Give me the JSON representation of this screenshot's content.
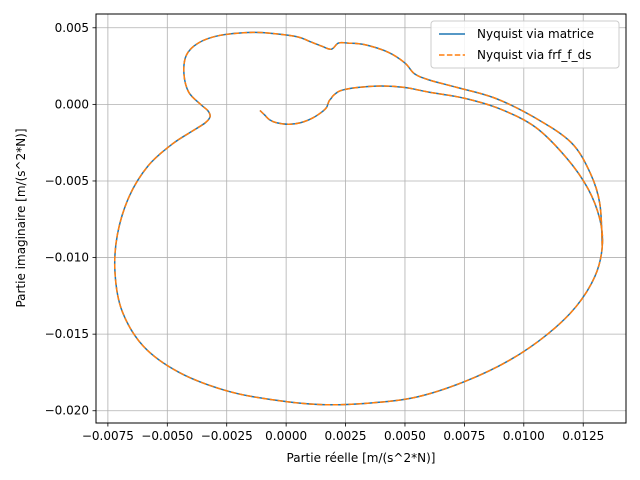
{
  "chart_data": {
    "type": "line",
    "title": "",
    "xlabel": "Partie réelle [m/(s^2*N)]",
    "ylabel": "Partie imaginaire [m/(s^2*N)]",
    "xlim": [
      -0.008,
      0.0143
    ],
    "ylim": [
      -0.0208,
      0.0059
    ],
    "xticks": [
      -0.0075,
      -0.005,
      -0.0025,
      0.0,
      0.0025,
      0.005,
      0.0075,
      0.01,
      0.0125
    ],
    "xtick_labels": [
      "−0.0075",
      "−0.0050",
      "−0.0025",
      "0.0000",
      "0.0025",
      "0.0050",
      "0.0075",
      "0.0100",
      "0.0125"
    ],
    "yticks": [
      0.005,
      0.0,
      -0.005,
      -0.01,
      -0.015,
      -0.02
    ],
    "ytick_labels": [
      "0.005",
      "0.000",
      "−0.005",
      "−0.010",
      "−0.015",
      "−0.020"
    ],
    "grid": true,
    "legend_position": "top-right",
    "series": [
      {
        "name": "Nyquist via matrice",
        "color": "#1f77b4",
        "style": "solid",
        "x": [
          -0.0011,
          -0.0009,
          -0.0007,
          -0.0004,
          0.0001,
          0.0006,
          0.0011,
          0.0015,
          0.0017,
          0.0018,
          0.0019,
          0.002,
          0.0023,
          0.003,
          0.004,
          0.005,
          0.006,
          0.0075,
          0.009,
          0.0105,
          0.0118,
          0.0127,
          0.0132,
          0.0133,
          0.013,
          0.0122,
          0.011,
          0.0094,
          0.0075,
          0.0055,
          0.0035,
          0.0015,
          -0.0005,
          -0.0025,
          -0.0045,
          -0.006,
          -0.0069,
          -0.0072,
          -0.0071,
          -0.0066,
          -0.0058,
          -0.0048,
          -0.0039,
          -0.0034,
          -0.0032,
          -0.0033,
          -0.0036,
          -0.0041,
          -0.0043,
          -0.0042,
          -0.0037,
          -0.0028,
          -0.0014,
          -0.0004,
          0.0005,
          0.001,
          0.0015,
          0.0019,
          0.0022,
          0.0026,
          0.0033,
          0.0043,
          0.005,
          0.0054,
          0.006,
          0.0072,
          0.0088,
          0.0105,
          0.012,
          0.0128,
          0.0132,
          0.0133
        ],
        "y": [
          -0.0004,
          -0.0007,
          -0.001,
          -0.0012,
          -0.0013,
          -0.0012,
          -0.0009,
          -0.0005,
          -0.0002,
          0.0002,
          0.0004,
          0.0006,
          0.0009,
          0.0011,
          0.0012,
          0.0011,
          0.0008,
          0.0004,
          -0.0003,
          -0.0015,
          -0.0035,
          -0.0055,
          -0.0075,
          -0.0093,
          -0.0112,
          -0.0132,
          -0.015,
          -0.0167,
          -0.0181,
          -0.0191,
          -0.0195,
          -0.0196,
          -0.0193,
          -0.0187,
          -0.0175,
          -0.0158,
          -0.0135,
          -0.011,
          -0.0085,
          -0.006,
          -0.004,
          -0.0026,
          -0.0017,
          -0.0012,
          -0.0008,
          -0.0004,
          0.0,
          0.0008,
          0.002,
          0.0032,
          0.004,
          0.0045,
          0.0047,
          0.0046,
          0.0044,
          0.0041,
          0.0038,
          0.0036,
          0.004,
          0.004,
          0.0039,
          0.0034,
          0.0027,
          0.002,
          0.0016,
          0.0011,
          0.0004,
          -0.0009,
          -0.0025,
          -0.0045,
          -0.0065,
          -0.0093
        ]
      },
      {
        "name": "Nyquist via frf_f_ds",
        "color": "#ff7f0e",
        "style": "dashed",
        "x": [
          -0.0011,
          -0.0009,
          -0.0007,
          -0.0004,
          0.0001,
          0.0006,
          0.0011,
          0.0015,
          0.0017,
          0.0018,
          0.0019,
          0.002,
          0.0023,
          0.003,
          0.004,
          0.005,
          0.006,
          0.0075,
          0.009,
          0.0105,
          0.0118,
          0.0127,
          0.0132,
          0.0133,
          0.013,
          0.0122,
          0.011,
          0.0094,
          0.0075,
          0.0055,
          0.0035,
          0.0015,
          -0.0005,
          -0.0025,
          -0.0045,
          -0.006,
          -0.0069,
          -0.0072,
          -0.0071,
          -0.0066,
          -0.0058,
          -0.0048,
          -0.0039,
          -0.0034,
          -0.0032,
          -0.0033,
          -0.0036,
          -0.0041,
          -0.0043,
          -0.0042,
          -0.0037,
          -0.0028,
          -0.0014,
          -0.0004,
          0.0005,
          0.001,
          0.0015,
          0.0019,
          0.0022,
          0.0026,
          0.0033,
          0.0043,
          0.005,
          0.0054,
          0.006,
          0.0072,
          0.0088,
          0.0105,
          0.012,
          0.0128,
          0.0132,
          0.0133
        ],
        "y": [
          -0.0004,
          -0.0007,
          -0.001,
          -0.0012,
          -0.0013,
          -0.0012,
          -0.0009,
          -0.0005,
          -0.0002,
          0.0002,
          0.0004,
          0.0006,
          0.0009,
          0.0011,
          0.0012,
          0.0011,
          0.0008,
          0.0004,
          -0.0003,
          -0.0015,
          -0.0035,
          -0.0055,
          -0.0075,
          -0.0093,
          -0.0112,
          -0.0132,
          -0.015,
          -0.0167,
          -0.0181,
          -0.0191,
          -0.0195,
          -0.0196,
          -0.0193,
          -0.0187,
          -0.0175,
          -0.0158,
          -0.0135,
          -0.011,
          -0.0085,
          -0.006,
          -0.004,
          -0.0026,
          -0.0017,
          -0.0012,
          -0.0008,
          -0.0004,
          0.0,
          0.0008,
          0.002,
          0.0032,
          0.004,
          0.0045,
          0.0047,
          0.0046,
          0.0044,
          0.0041,
          0.0038,
          0.0036,
          0.004,
          0.004,
          0.0039,
          0.0034,
          0.0027,
          0.002,
          0.0016,
          0.0011,
          0.0004,
          -0.0009,
          -0.0025,
          -0.0045,
          -0.0065,
          -0.0093
        ]
      }
    ]
  }
}
